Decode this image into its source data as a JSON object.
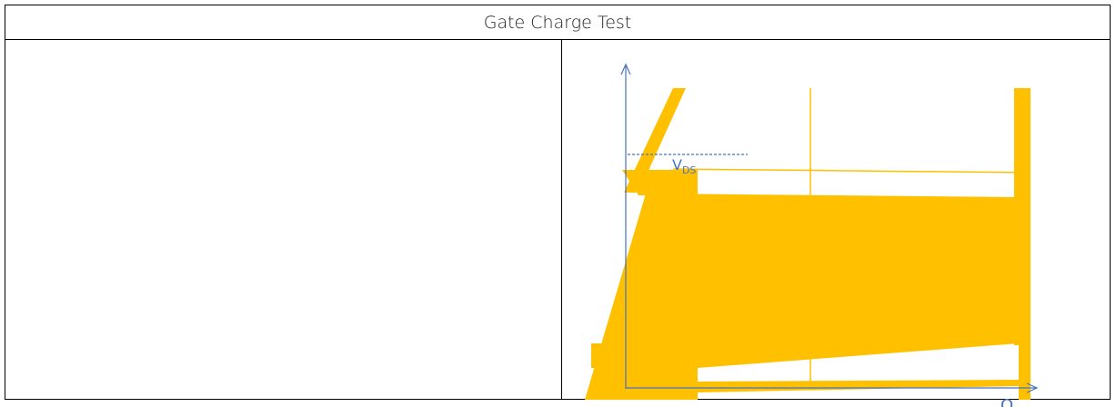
{
  "header": {
    "title": "Gate Charge Test"
  },
  "figure": {
    "vds_label": {
      "main": "V",
      "sub": "DS"
    },
    "q_label": "Q"
  }
}
